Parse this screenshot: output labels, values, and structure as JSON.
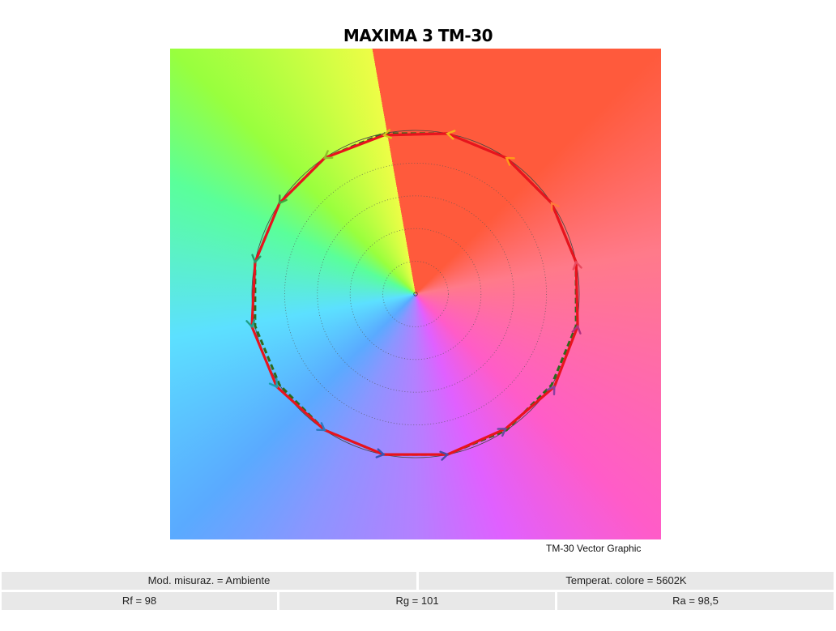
{
  "header": {
    "title": "MAXIMA 3 TM-30"
  },
  "caption": "TM-30 Vector Graphic",
  "info": {
    "mode": "Mod. misuraz. = Ambiente",
    "cct": "Temperat. colore = 5602K",
    "rf": "Rf = 98",
    "rg": "Rg = 101",
    "ra": "Ra = 98,5"
  },
  "chart_data": {
    "type": "vector-graphic",
    "title": "MAXIMA 3 TM-30",
    "grid_rings": [
      0.2,
      0.4,
      0.6,
      0.8
    ],
    "reference_circle": 1.0,
    "hue_bins": 16,
    "reference_radius": [
      1.0,
      1.0,
      1.0,
      1.0,
      1.0,
      1.0,
      1.0,
      1.0,
      1.0,
      1.0,
      1.0,
      1.0,
      1.0,
      1.0,
      1.0,
      1.0
    ],
    "test_radius": [
      1.0,
      1.0,
      1.0,
      1.0,
      0.99,
      1.0,
      1.0,
      1.0,
      1.02,
      1.02,
      1.0,
      1.0,
      1.0,
      0.99,
      1.02,
      1.01
    ],
    "bin_colors": [
      "#e84a5f",
      "#ff7a3a",
      "#ff9a1a",
      "#f2b51a",
      "#d4c31a",
      "#8fbf2a",
      "#3ea540",
      "#2a9a6a",
      "#20a08a",
      "#1aa0b0",
      "#2a7ac0",
      "#3355b8",
      "#4a4aa8",
      "#6a4aa0",
      "#8a3fa0",
      "#b03080"
    ],
    "test_line_color": "#e8131d",
    "reference_line_color": "#2d6a1e",
    "legend": []
  }
}
